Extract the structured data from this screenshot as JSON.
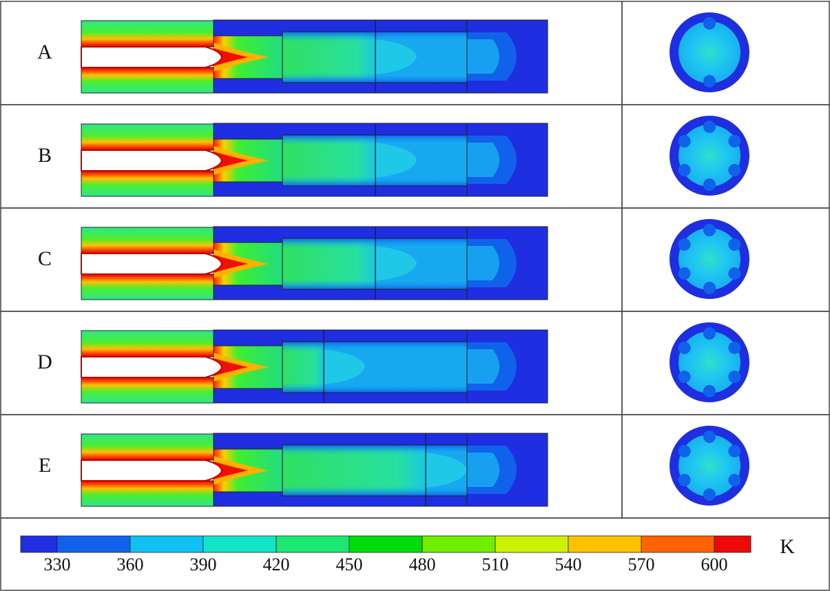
{
  "panels": [
    {
      "label": "A"
    },
    {
      "label": "B"
    },
    {
      "label": "C"
    },
    {
      "label": "D"
    },
    {
      "label": "E"
    }
  ],
  "colorbar": {
    "unit": "K",
    "ticks": [
      330,
      360,
      390,
      420,
      450,
      480,
      510,
      540,
      570,
      600
    ],
    "colors": [
      "#1e2ee0",
      "#1062ea",
      "#10c0f2",
      "#14e4c6",
      "#1ee672",
      "#00dc0a",
      "#70ee00",
      "#cdf200",
      "#ffc200",
      "#ff6400",
      "#ee0808"
    ]
  }
}
